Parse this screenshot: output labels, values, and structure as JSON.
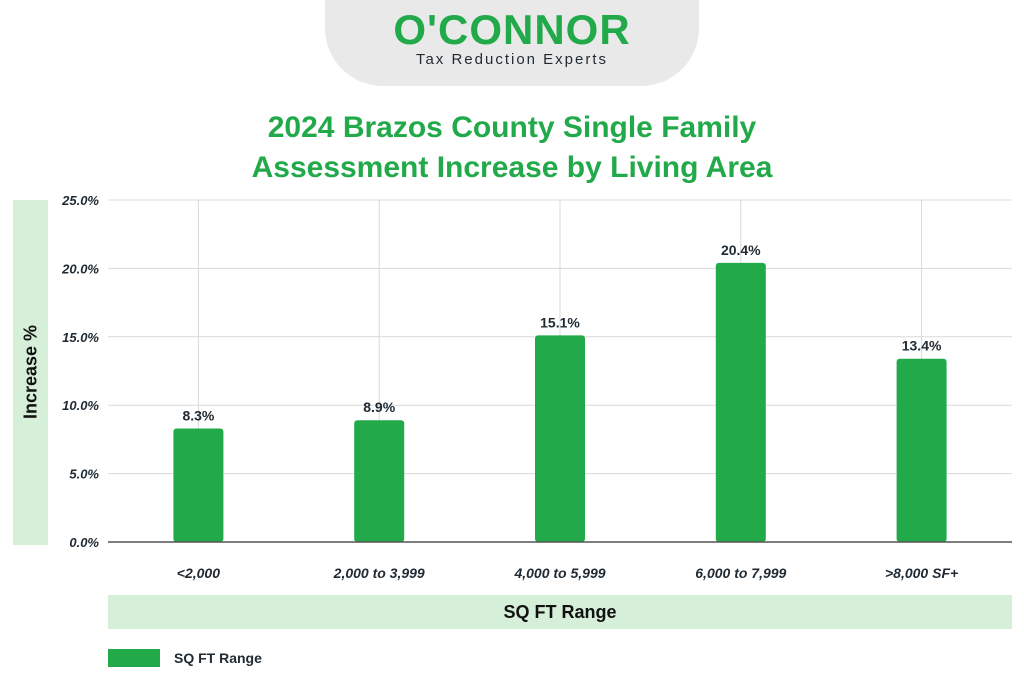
{
  "logo": {
    "brand": "O'CONNOR",
    "tagline": "Tax Reduction Experts"
  },
  "colors": {
    "bar": "#22a94a",
    "title": "#22a94a",
    "band": "#d5efd9",
    "grid": "#d9d9d9",
    "axis": "#555555",
    "logo_tab": "#e9e9e9"
  },
  "chart_data": {
    "type": "bar",
    "title_lines": [
      "2024 Brazos County Single Family",
      "Assessment Increase by Living Area"
    ],
    "xlabel": "SQ FT Range",
    "ylabel": "Increase %",
    "categories": [
      "<2,000",
      "2,000 to 3,999",
      "4,000 to 5,999",
      "6,000 to 7,999",
      ">8,000 SF+"
    ],
    "series": [
      {
        "name": "SQ FT Range",
        "values": [
          8.3,
          8.9,
          15.1,
          20.4,
          13.4
        ],
        "labels": [
          "8.3%",
          "8.9%",
          "15.1%",
          "20.4%",
          "13.4%"
        ]
      }
    ],
    "ylim": [
      0,
      25
    ],
    "yticks": [
      0,
      5,
      10,
      15,
      20,
      25
    ],
    "ytick_labels": [
      "0.0%",
      "5.0%",
      "10.0%",
      "15.0%",
      "20.0%",
      "25.0%"
    ],
    "grid": true,
    "legend_position": "bottom-left"
  }
}
